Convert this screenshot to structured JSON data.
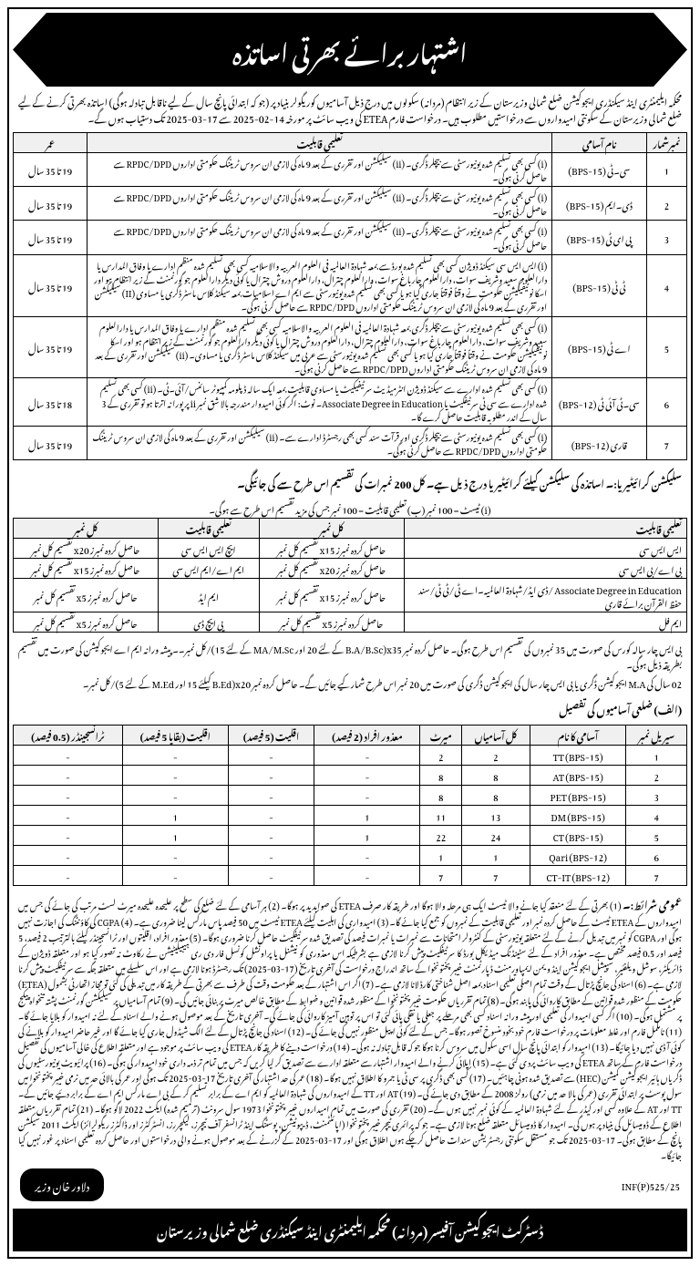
{
  "header": {
    "title": "اشتہار برائے بھرتی اساتذہ"
  },
  "intro": "محکمہ ایلیمنٹری اینڈ سیکنڈری ایجوکیشن ضلع شمالی وزیرستان کے زیر انتظام (مردانہ) سکولوں میں درج ذیل آسامیوں کوریگولر بنیاد پر (جو کہ ابتدائی پانچ سال کے لیے ناقابل تبادلہ ہوگی) اساتذہ بھرتی کرنے کے لیے ضلع شمالی وزیرستان کے سکونتی امیدواروں سے درخواستیں مطلوب ہیں۔ درخواست فارم ETEA کی ویب سائٹ پر مورخہ 14-02-2025 سے 17-03-2025 تک دستیاب ہوں گے۔",
  "table1": {
    "headers": {
      "serial": "نمبرشمار",
      "post": "نام آسامی",
      "qualification": "تعلیمی قابلیت",
      "age": "عمر"
    },
    "rows": [
      {
        "n": "1",
        "post": "سی۔ٹی (BPS-15)",
        "qual": "(i) کسی بھی تسلیم شدہ یونیورسٹی سے بیچلر ڈگری۔ (ii) سیلیکشن اور تقرری کے بعد 9 ماہ کی لازمی ان سروس ٹریننگ حکومتی اداروں RPDC/DPD سے حاصل کرنی ہوگی۔",
        "age": "19 تا 35 سال"
      },
      {
        "n": "2",
        "post": "ڈی۔ایم (BPS-15)",
        "qual": "(i) کسی بھی تسلیم شدہ یونیورسٹی سے بیچلر ڈگری۔ (ii) سیلیکشن اور تقرری کے بعد 9 ماہ کی لازمی ان سروس ٹریننگ حکومتی اداروں RPDC/DPD سے حاصل کرنی ہوگی۔",
        "age": "19 تا 35 سال"
      },
      {
        "n": "3",
        "post": "پی ای ٹی (BPS-15)",
        "qual": "(i) کسی بھی تسلیم شدہ یونیورسٹی سے بیچلر ڈگری۔ (ii) سیلیکشن اور تقرری کے بعد 9 ماہ کی لازمی ان سروس ٹریننگ حکومتی اداروں RPDC/DPD سے حاصل کرنی ہوگی۔",
        "age": "19 تا 35 سال"
      },
      {
        "n": "4",
        "post": "ٹی ٹی (BPS-15)",
        "qual": "(i) ایس ایس سی سیکنڈ ڈویژن کسی بھی تسلیم شدہ بورڈ سے بمعہ شہادۃ العالمیہ فی العلوم العربیہ والاسلامیہ کسی بھی تسلیم شدہ منظم ادارے یا وفاق المدارس یا دارالعلوم سعید وشریف سوات، دارالعلوم چارباغ سوات، دارالعلوم چترال، دارالعلوم دروش چترال یا کوئی دیگر دارالعلوم جو گورنمنٹ کے زیر انتظام ہو اور اسکا نوٹیفیکیشن حکومت نے وقتاً فوقتاً جاری کیا ہو یا کسی بھی تسلیم شدہ یونیورسٹی سے ایم اے اسلامیات بمعہ سیکنڈ کلاس ماسٹر ڈگری یا مساوی (II) سیلیکشن اور تقرری کے بعد 9 ماہ کی لازمی ان سروس ٹریننگ حکومتی اداروں RPDC/DPD سے حاصل کرنی ہوگی۔",
        "age": "19 تا 35 سال"
      },
      {
        "n": "5",
        "post": "اے ٹی (BPS-15)",
        "qual": "(i) کسی بھی تسلیم شدہ یونیورسٹی سے بیچلر ڈگری بمعہ شہادۃ العالمیہ فی العلوم العربیہ والاسلامیہ کسی بھی تسلیم شدہ منظم ادارے یا وفاق المدارس یا دارالعلوم سعید وشریف سوات، دارالعلوم چارباغ سوات، دارالعلوم چترال، دارالعلوم دروش چترال یا کوئی دیگر دارالعلوم جو گورنمنٹ کے زیر انتظام ہو اور اسکا نوٹیفیکیشن حکومت نے وقتاً فوقتاً جاری کیا ہو یا کسی بھی تسلیم شدہ یونیورسٹی سے عربی میں سیکنڈ کلاس ماسٹر ڈگری یا مساوی۔ (ii) سیلیکشن اور تقرری کے بعد 9 ماہ کی لازمی ان سروس ٹریننگ حکومتی اداروں RPDC/DPD سے حاصل کرنی ہوگی۔",
        "age": "19 تا 35 سال"
      },
      {
        "n": "6",
        "post": "سی۔ٹی آئی ٹی (BPS-12)",
        "qual": "(i) کسی بھی تسلیم شدہ ادارے سے سیکنڈ ڈویژن انٹرمیڈیٹ سرٹیفیکیٹ یا مساوی قابلیت بمعہ ایک سالہ ڈپلومہ کمپیوٹر سائنس/آئی۔ٹی۔ (ii) کسی بھی تسلیم شدہ ادارے سے سی ٹی سرٹیفکیٹ یا Associate Degree in Education۔ نوٹ: اگر کوئی امیدوار مندرجہ بالا شق نمبر ii پر پورا نہ اترتا ہو تو تقرری کے 3 سال کے اندر مطلوبہ قابلیت حاصل کرے گا۔",
        "age": "18 تا 35 سال"
      },
      {
        "n": "7",
        "post": "قاری (BPS-12)",
        "qual": "(i) کسی بھی تسلیم شدہ یونیورسٹی سے بیچلر ڈگری اور قرآت سند کسی بھی رجسٹرڈ ادارے سے۔ (ii) سیلیکشن اور تقرری کے بعد 9 ماہ کی لازمی ان سروس ٹریننگ حکومتی اداروں RPDC/DPD سے حاصل کرنی ہوگی۔",
        "age": "19 تا 35 سال"
      }
    ]
  },
  "criteria_title": "سلیکشن کرائیٹیریا:۔ اساتذہ کی سلیکشن کیلئے کرائیٹیریا درج ذیل ہے۔ کل 200 نمبرات کی تقسیم اس طرح سے کی جائیگی۔",
  "criteria_sub": "(i) ٹیسٹ = 100 نمبر (ب) تعلیمی قابلیت = 100 نمبر جس کی مزید تقسیم اس طرح سے ہوگی۔",
  "table2": {
    "h1": "تعلیمی قابلیت",
    "h2": "کل نمبر",
    "h3": "تعلیمی قابلیت",
    "h4": "کل نمبر",
    "rows": [
      {
        "q1": "ایس ایس سی",
        "m1": "حاصل کردہ نمبرز x15 تقسیم کل نمبر",
        "q2": "ایچ ایس ایس سی",
        "m2": "حاصل کردہ نمبرز x20 تقسیم کل نمبر"
      },
      {
        "q1": "بی اے/بی ایس سی",
        "m1": "حاصل کردہ نمبرز x20 تقسیم کل نمبر",
        "q2": "ایم اے/ایم ایس سی",
        "m2": "حاصل کردہ نمبرز x15 تقسیم کل نمبر"
      },
      {
        "q1": "Associate Degree in Education /ڈی ایڈ/شہادۃ العالمیہ۔اے ٹی/ٹی ٹی/سند حفظ القرآن برائے قاری",
        "m1": "حاصل کردہ نمبرز x15 تقسیم کل نمبر",
        "q2": "ایم ایڈ",
        "m2": "حاصل کردہ نمبرز x5 تقسیم کل نمبر"
      },
      {
        "q1": "ایم فل",
        "m1": "حاصل کردہ نمبرز x5 تقسیم کل نمبر",
        "q2": "پی ایچ ڈی",
        "m2": "حاصل کردہ نمبرز x5 تقسیم کل نمبر"
      }
    ]
  },
  "note1": "بی ایس چار سالہ کورس کی صورت میں 35 نمبروں کی تقسیم اس طرح ہوگی۔ حاصل کردہ نمبر x35(B.A/B.Sc کے لئے 20 اور MA/M.Sc کے لئے 15)/کل نمبر۔۔ پیشہ ورانہ ایم اے ایجوکیشن کی صورت میں تقسیم بطریقہ ذیل ہوگی۔",
  "note2": "02 سال کی M.A ایجوکیشن ڈگری یا بی ایس چار سال کی ایجوکیشن ڈگری کی صورت میں 20 نمبر اس طرح شمار کیے جائیں گے۔ حاصل کردہ نمبر x20(B.Ed کیلئے 15 اور M.Ed کے لئے 5)/کل نمبر۔",
  "district_title": "(الف) ضلعی آسامیوں کی تفصیل",
  "table3": {
    "headers": {
      "h1": "سیریل نمبر",
      "h2": "آسامی کا نام",
      "h3": "کل آسامیاں",
      "h4": "میرٹ",
      "h5": "معذور افراد (2 فیصد)",
      "h6": "اقلیت (5 فیصد)",
      "h7": "اقلیت (بقایا 5 فیصد)",
      "h8": "ٹرانسجینڈر (0.5 فیصد)"
    },
    "rows": [
      {
        "c": [
          "1",
          "TT (BPS-15)",
          "2",
          "2",
          "-",
          "-",
          "-",
          "-"
        ]
      },
      {
        "c": [
          "2",
          "AT (BPS-15)",
          "8",
          "8",
          "-",
          "-",
          "-",
          "-"
        ]
      },
      {
        "c": [
          "3",
          "PET (BPS-15)",
          "8",
          "8",
          "-",
          "-",
          "-",
          "-"
        ]
      },
      {
        "c": [
          "4",
          "DM (BPS-15)",
          "13",
          "11",
          "1",
          "-",
          "1",
          "-"
        ]
      },
      {
        "c": [
          "5",
          "CT (BPS-15)",
          "24",
          "22",
          "1",
          "-",
          "1",
          "-"
        ]
      },
      {
        "c": [
          "6",
          "Qari (BPS-12)",
          "1",
          "1",
          "-",
          "-",
          "-",
          "-"
        ]
      },
      {
        "c": [
          "7",
          "CT-IT (BPS-12)",
          "7",
          "7",
          "-",
          "-",
          "-",
          "-"
        ]
      }
    ]
  },
  "terms_title": "عمومی شرائط:۔",
  "terms_body": "(1) بھرتی کے لئے منعقد کیا جانے والا ٹیسٹ ایک ہی مرحلہ والا ہوگا اور طریقہ کار صرف ETEA کی صوابدید پر ہوگا۔ (2) ہر آسامی کے لئے ضلع کی سطح پر علیحدہ علیحدہ میرٹ لسٹ مرتب کی جائے گی جس میں امیدواروں کے ETEA ٹیسٹ کے حاصل کردہ نمبر اور تعلیمی قابلیت کے نمبروں کو جمع کیا جائے گا۔ (3) امیدواری کی اہلیت کیلئے ETEA ٹیسٹ میں 50 فیصد پاس مارکس لینا ضروری ہے۔ (4) CGPA کی کاؤنٹنگ کی اجازت نہیں ہوگی اور CGPA کو نمبر میں تبدیل کرنے کے لئے متعلقہ یونیورسٹی کے کنٹرولر امتحانات سے نمبرات یا نمبرات فیصد کی تصدیق شدہ سرٹیفکیٹ حاصل کرنا ضروری ہوگا۔ (5) معذور افراد، اقلیتوں اور ٹرانسجینڈر کیلئے بالترتیب 2 فیصد، 5 فیصد اور 0.5 فیصد مختص ہے۔ معذور افراد کے لئے سٹینڈنگ میڈیکل بورڈ کا سرٹیفکیٹ پیش کرنا لازمی ہے بشرطیکہ اس معذوری کو نیشنل یا پراونشل کونسل فار دی ری ہیبیلیٹیشن نے رکاوٹ نہ تصور کیا ہو اور متعلقہ ڈویژن کے ڈائریکٹر، سوشل ویلفئیر، سپیشل ایجوکیشن اینڈ ویمن ایمپاورمنٹ ڈپارٹمنٹ خیبر پختونخوا کے ساتھ اندراج درخواست کی آخری تاریخ (17-03-2025) تک رجسٹرڈ ہونا لازمی ہے اور اس سلسلے میں متعلقہ جگہ سے سرٹیفکیٹ پیش کرنا لازمی ہے۔ (6) اسناد کی جانچ پڑتال کے وقت تمام اصلی تعلیمی اسناد بمعہ اصل شناختی کارڈ لانا لازمی ہے۔ (7) اگر اس اشتہار کے بعد حکومت وقت کی طرف سے بھرتی کے طریقہ کار میں تبدیلی کی گئی تو مجاز اتھارٹی بشمول (ETEA) حکومت کے منظور شدہ قوانین کے مطابق کاروائی کی پابند ہوگی۔ (8) تمام تقرریاں حکومت خیبرپختونخوا کے منظور شدہ قوانین و ضوابط کے مطابق خالص میرٹ پر بنائی جائیں گی۔ (9) تمام آسامیاں پر سیلیکشن گورنمنٹ پشتہ تنخواہ پیکج پر مشتمل ہوگی۔ (10) اگر کسی امیدوار کی تعلیمی اور پیشہ ورانہ اسناد کسی بھی مرحلے پر جعلی یا نقلی پائی گئی تو اس پر توہین آمیز کاروائی کی جائے گی۔ آخری تاریخ کے بعد موصول ہونے والے اسناد کے لئے نہ امیدوار کو بلایا جائے گا۔ (11) نامکمل فارم اور غلط معلومات پر درخواست فارم خود بخود منسوخ تصور ہوگا۔ جس کے لئے کوئی اپیل منظور نہیں کی جائے گی۔ (12) اسناد کی جانچ پڑتال کے لئے الگ شیڈول جاری کیا جائے گا اور غیر حاضر امیدوار کو بلانے کی کوئی آ ڈی نہیں دیا جائیگا۔ (13) امیدوار کو ابتدائی پانچ سال اسی سکول میں سروس کرنا ہوگا جو کہ قابل تبادلہ نہ ہوگی۔ (14) درخواست دینے کا طریقہ کار ETEA کی ویب سائٹ پر موجود ہے اور متعلقہ اطلاع کی خالی آسامیوں کی تفصیل درخواست فارم کے ساتھ ETEA کی ویب سائٹ پرد ی گئی ہے۔ (15) اپلائی کرنے والے امیدوار اشتہار سے متعلقہ ادارے سے تصدیق کر لیا کریں کہ جس میں تمام تر ذمہ داری خود امیدوار کی ہوگی۔ (16) پرائیویٹ یونیورسٹیوں کی ڈگریاں ہائیر ایجوکیشن کمیشن (HEC) سے تصدیق شدہ ہونی چاہئیں۔ (17) کسی بھی ڈگری پر سی ٹی یا جمرو کا اطلاق نہیں ہوگا۔ (18) عمر کی حد اشتہار کی آخری تاریخ 17-03-2025 تک ہوگی اور عمر کی بالائی حد میں نرمی خیبر پختونخوا میں سول پوسٹ پر ابتدائی تقرری (عمر کی بالا حد میں نرمی) رولز 2008 کے مطابق دی جائے گی۔ (19) AT اور TT کے امیدواروں کی شہادۃ العالمیہ کو ایم اے کے برابر تسلیم کر کے بی اے مارکس ایم اے کے برابر دئیے جائیں گے۔ TT اور AT کے علاوہ کسی اور کیڈر کے لئے شہادۃ العالمیہ کے کوئی نمبر نہیں ہوں گے۔ (20) تقرری کی صورت میں تمام امیداروں خیبر پختونخوا 1973 سول سرونٹ (ترمیم شدہ) ایکٹ 2022 لاگو ہوگا۔ (21) تمام تقرریاں متعلقہ اطلاع کے ڈومیسائل کی بنیاد پر ہوں گی۔ امیدوار کا ڈومیسائل متعلقہ ضلع ہونا لازمی ہے۔ جو کہ پرائمری ٹیچر خیبر پختونخوا (اپائنٹمنٹ، ڈیپوٹیشن، پوسٹنگ اینڈ ٹرانسفر آف ٹیچرز، لیکچررز، انسٹرکٹرز اور ڈاکٹرز ریگولرائز) ایکٹ 2011 سیکشن پانچ کے مطابق ہوگی۔ 17-03-2025 تک جو مستقل سکونتی رجسٹریشن سندات حاصل کرچکے ہوں اطلاق ہوگی اور 17-03-2025 کے گزرنے کے بعد موصول ہونے والی درخواستوں اور حاصل کردہ تعلیمی اسناد پر غور نہیں کیا جائیگا۔",
  "signature": {
    "name": "دلاور خان وزیر",
    "code": "INF(P)525/25"
  },
  "footer": "ڈسٹرکٹ ایجوکیشن آفیسر (مردانہ) محکمہ ایلیمنٹری اینڈ سیکنڈری ضلع شمالی وزیرستان"
}
